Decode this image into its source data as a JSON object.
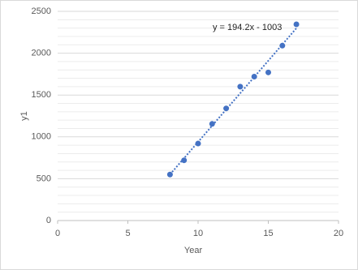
{
  "chart_data": {
    "type": "scatter",
    "x_label": "Year",
    "y_label": "y1",
    "series": [
      {
        "name": "y1",
        "color": "#4472c4",
        "x": [
          8,
          9,
          10,
          11,
          12,
          13,
          14,
          15,
          16,
          17
        ],
        "values": [
          550,
          720,
          920,
          1155,
          1340,
          1600,
          1720,
          1770,
          2090,
          2345
        ]
      }
    ],
    "trendline": {
      "label": "y = 194.2x - 1003",
      "slope": 194.2,
      "intercept": -1003
    },
    "xlim": [
      0,
      20
    ],
    "xticks": [
      0,
      5,
      10,
      15,
      20
    ],
    "ylim": [
      0,
      2500
    ],
    "yticks": [
      0,
      500,
      1000,
      1500,
      2000,
      2500
    ],
    "grid": true
  }
}
